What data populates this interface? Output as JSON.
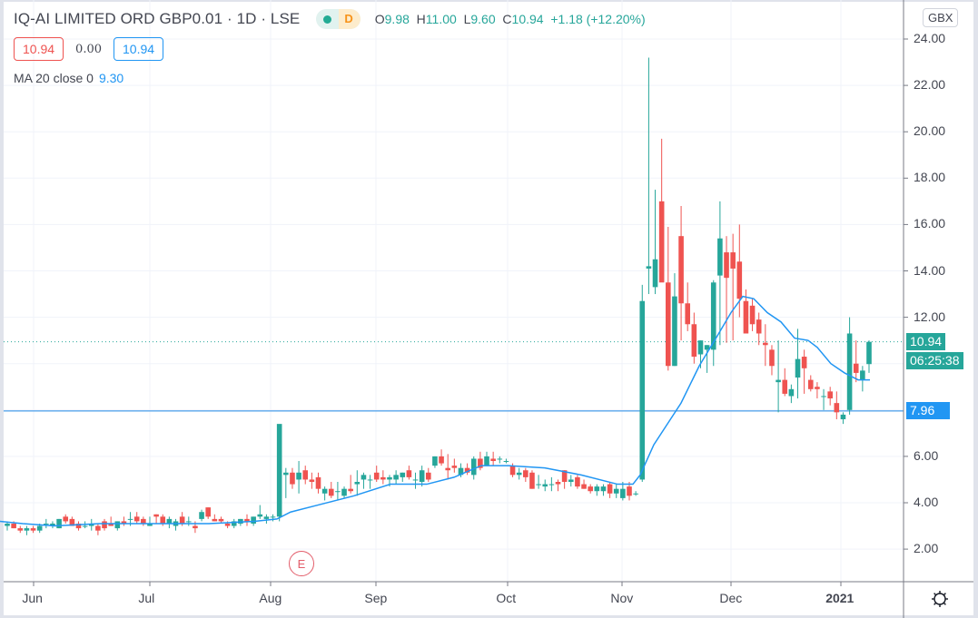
{
  "header": {
    "symbol_title": "IQ-AI LIMITED ORD GBP0.01 · 1D · LSE",
    "status_letter": "D",
    "ohlc": {
      "o_label": "O",
      "o": "9.98",
      "h_label": "H",
      "h": "11.00",
      "l_label": "L",
      "l": "9.60",
      "c_label": "C",
      "c": "10.94",
      "change": "+1.18 (+12.20%)"
    },
    "sell_price": "10.94",
    "spread": "0.00",
    "buy_price": "10.94",
    "indicator_label": "MA 20 close 0",
    "indicator_value": "9.30"
  },
  "currency_button": "GBX",
  "price_axis": {
    "ticks": [
      "24.00",
      "22.00",
      "20.00",
      "18.00",
      "16.00",
      "14.00",
      "12.00",
      "6.00",
      "4.00",
      "2.00"
    ],
    "last_price_badge": "10.94",
    "countdown_badge": "06:25:38",
    "hline_badge": "7.96"
  },
  "time_axis": {
    "labels": [
      "Jun",
      "Jul",
      "Aug",
      "Sep",
      "Oct",
      "Nov",
      "Dec",
      "2021"
    ]
  },
  "earnings_marker": "E",
  "colors": {
    "up": "#26a69a",
    "down": "#ef5350",
    "ma": "#2196f3",
    "hline": "#1e88e5",
    "grid": "#f0f3fa",
    "axis_text": "#434651"
  },
  "chart_data": {
    "type": "candlestick",
    "title": "IQ-AI LIMITED ORD GBP0.01 · 1D · LSE",
    "xlabel": "",
    "ylabel": "GBX",
    "ylim": [
      0.6,
      25.5
    ],
    "grid": true,
    "y_ticks": [
      2,
      4,
      6,
      8,
      10,
      12,
      14,
      16,
      18,
      20,
      22,
      24
    ],
    "x_tick_labels": [
      "Jun",
      "Jul",
      "Aug",
      "Sep",
      "Oct",
      "Nov",
      "Dec",
      "2021"
    ],
    "horizontal_line": 7.96,
    "last_close": 10.94,
    "legend": [
      "MA 20 close 0: 9.30"
    ],
    "candles": [
      [
        3.0,
        3.2,
        2.8,
        3.1
      ],
      [
        3.1,
        3.2,
        2.9,
        2.9
      ],
      [
        2.9,
        3.0,
        2.7,
        2.8
      ],
      [
        2.8,
        3.0,
        2.6,
        2.9
      ],
      [
        2.9,
        3.0,
        2.7,
        2.8
      ],
      [
        2.8,
        3.1,
        2.7,
        3.0
      ],
      [
        3.1,
        3.3,
        2.9,
        3.1
      ],
      [
        3.0,
        3.2,
        2.9,
        3.1
      ],
      [
        2.9,
        3.3,
        2.9,
        3.3
      ],
      [
        3.4,
        3.5,
        3.1,
        3.2
      ],
      [
        3.3,
        3.4,
        3.0,
        3.0
      ],
      [
        3.1,
        3.2,
        2.8,
        2.9
      ],
      [
        3.0,
        3.2,
        2.9,
        3.0
      ],
      [
        3.0,
        3.3,
        2.8,
        3.1
      ],
      [
        3.0,
        3.1,
        2.6,
        2.8
      ],
      [
        3.2,
        3.3,
        2.8,
        2.9
      ],
      [
        3.1,
        3.4,
        3.0,
        3.0
      ],
      [
        2.9,
        3.2,
        2.8,
        3.2
      ],
      [
        3.2,
        3.4,
        3.0,
        3.1
      ],
      [
        3.3,
        3.6,
        3.0,
        3.3
      ],
      [
        3.4,
        3.6,
        3.1,
        3.2
      ],
      [
        3.3,
        3.4,
        3.0,
        3.1
      ],
      [
        3.0,
        3.4,
        3.0,
        3.1
      ],
      [
        3.5,
        3.5,
        3.1,
        3.4
      ],
      [
        3.4,
        3.5,
        3.0,
        3.1
      ],
      [
        3.1,
        3.4,
        2.9,
        3.3
      ],
      [
        3.0,
        3.3,
        2.8,
        3.2
      ],
      [
        3.4,
        3.6,
        3.0,
        3.1
      ],
      [
        3.2,
        3.4,
        3.0,
        3.2
      ],
      [
        3.0,
        3.2,
        2.7,
        2.9
      ],
      [
        3.3,
        3.7,
        3.2,
        3.6
      ],
      [
        3.8,
        3.8,
        3.3,
        3.4
      ],
      [
        3.3,
        3.5,
        3.2,
        3.2
      ],
      [
        3.3,
        3.4,
        3.1,
        3.2
      ],
      [
        3.1,
        3.2,
        2.9,
        3.0
      ],
      [
        3.0,
        3.3,
        2.9,
        3.2
      ],
      [
        3.1,
        3.3,
        3.0,
        3.3
      ],
      [
        3.3,
        3.5,
        3.0,
        3.2
      ],
      [
        3.1,
        3.4,
        3.0,
        3.4
      ],
      [
        3.4,
        3.9,
        3.3,
        3.5
      ],
      [
        3.3,
        3.5,
        3.1,
        3.4
      ],
      [
        3.4,
        3.5,
        3.2,
        3.4
      ],
      [
        3.4,
        5.7,
        3.2,
        7.4
      ],
      [
        5.2,
        5.5,
        4.2,
        5.3
      ],
      [
        5.3,
        5.5,
        4.6,
        4.8
      ],
      [
        5.0,
        5.8,
        4.4,
        5.3
      ],
      [
        5.4,
        5.6,
        4.8,
        5.0
      ],
      [
        5.0,
        5.3,
        4.6,
        4.9
      ],
      [
        5.1,
        5.3,
        4.4,
        4.6
      ],
      [
        4.4,
        4.7,
        4.1,
        4.6
      ],
      [
        4.6,
        4.9,
        4.2,
        4.3
      ],
      [
        4.5,
        4.9,
        4.1,
        4.5
      ],
      [
        4.3,
        4.7,
        4.2,
        4.6
      ],
      [
        4.6,
        5.2,
        4.4,
        4.5
      ],
      [
        4.8,
        5.4,
        4.3,
        4.9
      ],
      [
        5.0,
        5.3,
        4.6,
        5.2
      ],
      [
        5.0,
        5.2,
        4.6,
        5.0
      ],
      [
        5.3,
        5.6,
        4.9,
        5.0
      ],
      [
        5.1,
        5.4,
        4.8,
        5.0
      ],
      [
        5.0,
        5.2,
        4.7,
        5.1
      ],
      [
        5.0,
        5.4,
        4.8,
        5.2
      ],
      [
        5.1,
        5.3,
        4.9,
        5.3
      ],
      [
        5.4,
        5.6,
        5.0,
        5.1
      ],
      [
        5.0,
        5.3,
        4.6,
        5.0
      ],
      [
        4.9,
        5.6,
        4.7,
        5.4
      ],
      [
        5.3,
        5.5,
        4.9,
        5.0
      ],
      [
        5.6,
        6.0,
        5.5,
        6.0
      ],
      [
        6.0,
        6.3,
        5.6,
        5.7
      ],
      [
        5.5,
        6.1,
        5.0,
        5.4
      ],
      [
        5.6,
        5.9,
        5.3,
        5.5
      ],
      [
        5.2,
        5.7,
        5.1,
        5.5
      ],
      [
        5.5,
        5.7,
        5.2,
        5.3
      ],
      [
        5.2,
        6.0,
        5.0,
        5.9
      ],
      [
        5.9,
        6.2,
        5.4,
        5.5
      ],
      [
        5.6,
        6.2,
        5.6,
        6.0
      ],
      [
        5.9,
        6.2,
        5.6,
        5.8
      ],
      [
        5.9,
        6.0,
        5.7,
        5.9
      ],
      [
        5.8,
        5.9,
        5.7,
        5.8
      ],
      [
        5.6,
        5.7,
        5.1,
        5.2
      ],
      [
        5.2,
        5.5,
        5.0,
        5.3
      ],
      [
        5.4,
        5.5,
        4.9,
        5.1
      ],
      [
        5.3,
        5.4,
        4.6,
        4.6
      ],
      [
        4.8,
        5.2,
        4.6,
        4.8
      ],
      [
        4.7,
        5.0,
        4.5,
        4.8
      ],
      [
        4.8,
        5.1,
        4.5,
        4.8
      ],
      [
        4.9,
        5.0,
        4.5,
        4.8
      ],
      [
        5.4,
        5.4,
        4.6,
        4.9
      ],
      [
        4.9,
        5.2,
        4.7,
        5.0
      ],
      [
        5.1,
        5.2,
        4.6,
        4.7
      ],
      [
        4.8,
        5.0,
        4.6,
        4.6
      ],
      [
        4.7,
        4.8,
        4.4,
        4.5
      ],
      [
        4.5,
        4.8,
        4.3,
        4.7
      ],
      [
        4.5,
        4.8,
        4.3,
        4.7
      ],
      [
        4.8,
        4.9,
        4.2,
        4.4
      ],
      [
        4.4,
        4.8,
        4.2,
        4.6
      ],
      [
        4.2,
        4.9,
        4.1,
        4.6
      ],
      [
        4.7,
        4.9,
        4.1,
        4.3
      ],
      [
        4.4,
        4.5,
        4.3,
        4.4
      ],
      [
        5.0,
        13.4,
        4.9,
        12.7
      ],
      [
        14.1,
        23.2,
        13.0,
        14.2
      ],
      [
        13.3,
        17.5,
        13.0,
        14.5
      ],
      [
        17.0,
        19.7,
        13.7,
        13.5
      ],
      [
        13.5,
        15.9,
        9.7,
        9.9
      ],
      [
        9.9,
        13.9,
        9.9,
        12.9
      ],
      [
        15.5,
        16.8,
        11.0,
        12.6
      ],
      [
        12.6,
        13.5,
        11.4,
        11.7
      ],
      [
        11.7,
        12.2,
        10.0,
        10.3
      ],
      [
        10.4,
        11.0,
        9.8,
        11.0
      ],
      [
        10.6,
        10.8,
        9.6,
        10.8
      ],
      [
        10.6,
        13.6,
        9.9,
        13.5
      ],
      [
        13.8,
        17.0,
        10.8,
        15.4
      ],
      [
        14.8,
        15.5,
        10.9,
        13.7
      ],
      [
        14.8,
        15.6,
        11.0,
        14.1
      ],
      [
        14.4,
        16.0,
        12.0,
        12.8
      ],
      [
        12.7,
        13.2,
        11.6,
        11.3
      ],
      [
        12.5,
        12.8,
        11.4,
        11.7
      ],
      [
        11.9,
        12.2,
        10.8,
        11.3
      ],
      [
        10.9,
        11.7,
        9.9,
        10.8
      ],
      [
        10.6,
        10.8,
        9.5,
        9.9
      ],
      [
        9.2,
        11.0,
        7.9,
        9.3
      ],
      [
        9.3,
        9.8,
        8.6,
        8.7
      ],
      [
        8.6,
        9.1,
        8.3,
        8.9
      ],
      [
        9.4,
        11.5,
        8.5,
        10.2
      ],
      [
        10.3,
        10.6,
        8.7,
        9.8
      ],
      [
        9.3,
        9.5,
        8.8,
        8.9
      ],
      [
        9.0,
        9.2,
        8.5,
        8.9
      ],
      [
        8.6,
        8.9,
        8.0,
        8.6
      ],
      [
        8.8,
        9.0,
        8.2,
        8.5
      ],
      [
        8.3,
        8.8,
        7.6,
        7.9
      ],
      [
        7.6,
        7.9,
        7.4,
        7.8
      ],
      [
        8.0,
        12.0,
        7.8,
        11.3
      ],
      [
        10.0,
        11.0,
        9.2,
        9.6
      ],
      [
        9.3,
        9.9,
        8.8,
        9.7
      ],
      [
        9.98,
        11.0,
        9.6,
        10.94
      ]
    ],
    "ma20": [
      [
        0,
        3.2
      ],
      [
        25,
        3.1
      ],
      [
        60,
        3.0
      ],
      [
        110,
        3.1
      ],
      [
        165,
        3.1
      ],
      [
        230,
        3.1
      ],
      [
        280,
        3.2
      ],
      [
        305,
        3.3
      ],
      [
        320,
        3.6
      ],
      [
        350,
        3.9
      ],
      [
        390,
        4.3
      ],
      [
        430,
        4.8
      ],
      [
        470,
        4.8
      ],
      [
        500,
        5.1
      ],
      [
        530,
        5.6
      ],
      [
        560,
        5.6
      ],
      [
        600,
        5.5
      ],
      [
        640,
        5.2
      ],
      [
        680,
        4.8
      ],
      [
        697,
        4.8
      ],
      [
        705,
        5.2
      ],
      [
        720,
        6.5
      ],
      [
        735,
        7.4
      ],
      [
        750,
        8.3
      ],
      [
        770,
        9.9
      ],
      [
        790,
        11.2
      ],
      [
        805,
        12.2
      ],
      [
        818,
        12.9
      ],
      [
        830,
        12.8
      ],
      [
        845,
        12.2
      ],
      [
        860,
        11.8
      ],
      [
        875,
        11.1
      ],
      [
        890,
        11.0
      ],
      [
        900,
        10.7
      ],
      [
        915,
        10.0
      ],
      [
        930,
        9.6
      ],
      [
        945,
        9.3
      ],
      [
        958,
        9.3
      ]
    ]
  }
}
